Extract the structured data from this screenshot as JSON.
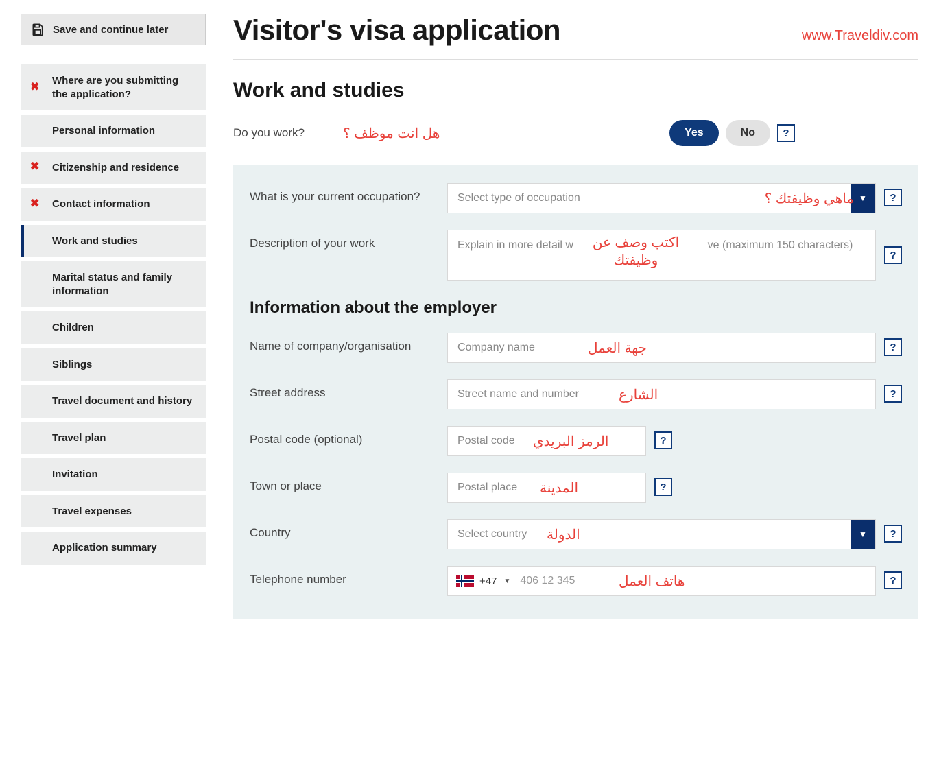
{
  "watermark": "www.Traveldiv.com",
  "page_title": "Visitor's visa application",
  "save_button": "Save and continue later",
  "sidebar": {
    "items": [
      {
        "label": "Where are you submitting the application?",
        "error": true,
        "active": false
      },
      {
        "label": "Personal information",
        "error": false,
        "active": false
      },
      {
        "label": "Citizenship and residence",
        "error": true,
        "active": false
      },
      {
        "label": "Contact information",
        "error": true,
        "active": false
      },
      {
        "label": "Work and studies",
        "error": false,
        "active": true
      },
      {
        "label": "Marital status and family information",
        "error": false,
        "active": false
      },
      {
        "label": "Children",
        "error": false,
        "active": false
      },
      {
        "label": "Siblings",
        "error": false,
        "active": false
      },
      {
        "label": "Travel document and history",
        "error": false,
        "active": false
      },
      {
        "label": "Travel plan",
        "error": false,
        "active": false
      },
      {
        "label": "Invitation",
        "error": false,
        "active": false
      },
      {
        "label": "Travel expenses",
        "error": false,
        "active": false
      },
      {
        "label": "Application summary",
        "error": false,
        "active": false
      }
    ]
  },
  "section_title": "Work and studies",
  "do_you_work": {
    "label": "Do you work?",
    "annotation": "هل انت موظف ؟",
    "yes": "Yes",
    "no": "No"
  },
  "occupation": {
    "label": "What is your current occupation?",
    "placeholder": "Select type of occupation",
    "annotation": "ماهي وظيفتك ؟"
  },
  "description": {
    "label": "Description of your work",
    "placeholder": "Explain in more detail what you do and where you live (maximum 150 characters)",
    "annotation": "اكتب وصف عن وظيفتك"
  },
  "employer_heading": "Information about the employer",
  "company": {
    "label": "Name of company/organisation",
    "placeholder": "Company name",
    "annotation": "جهة العمل"
  },
  "street": {
    "label": "Street address",
    "placeholder": "Street name and number",
    "annotation": "الشارع"
  },
  "postal": {
    "label": "Postal code (optional)",
    "placeholder": "Postal code",
    "annotation": "الرمز البريدي"
  },
  "town": {
    "label": "Town or place",
    "placeholder": "Postal place",
    "annotation": "المدينة"
  },
  "country": {
    "label": "Country",
    "placeholder": "Select country",
    "annotation": "الدولة"
  },
  "phone": {
    "label": "Telephone number",
    "code": "+47",
    "placeholder": "406 12 345",
    "annotation": "هاتف العمل"
  },
  "help_glyph": "?",
  "colors": {
    "accent": "#0f3a7a",
    "annotation": "#e8413a",
    "panel_bg": "#eaf1f2",
    "sidebar_bg": "#eceded"
  }
}
